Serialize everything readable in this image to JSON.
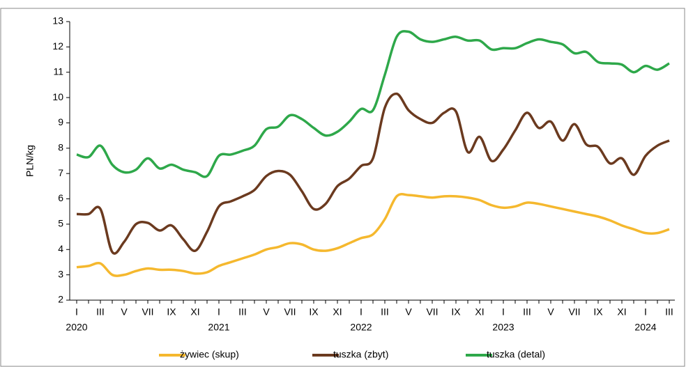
{
  "chart_data": {
    "type": "line",
    "ylabel": "PLN/kg",
    "categories": [
      "I",
      null,
      "III",
      null,
      "V",
      null,
      "VII",
      null,
      "IX",
      null,
      "XI",
      null,
      "I",
      null,
      "III",
      null,
      "V",
      null,
      "VII",
      null,
      "IX",
      null,
      "XI",
      null,
      "I",
      null,
      "III",
      null,
      "V",
      null,
      "VII",
      null,
      "IX",
      null,
      "XI",
      null,
      "I",
      null,
      "III",
      null,
      "V",
      null,
      "VII",
      null,
      "IX",
      null,
      "XI",
      null,
      "I",
      null,
      "III"
    ],
    "x_groups": [
      "2020",
      "2021",
      "2022",
      "2023",
      "2024"
    ],
    "ylim": [
      2,
      13
    ],
    "yticks": [
      2,
      3,
      4,
      5,
      6,
      7,
      8,
      9,
      10,
      11,
      12,
      13
    ],
    "legend": "bottom",
    "series": [
      {
        "name": "żywiec (skup)",
        "color": "#f5b82e",
        "values": [
          3.3,
          3.35,
          3.45,
          3.0,
          3.0,
          3.15,
          3.25,
          3.2,
          3.2,
          3.15,
          3.05,
          3.1,
          3.35,
          3.5,
          3.65,
          3.8,
          4.0,
          4.1,
          4.25,
          4.2,
          4.0,
          3.95,
          4.05,
          4.25,
          4.45,
          4.6,
          5.2,
          6.1,
          6.15,
          6.1,
          6.05,
          6.1,
          6.1,
          6.05,
          5.95,
          5.75,
          5.65,
          5.7,
          5.85,
          5.8,
          5.7,
          5.6,
          5.5,
          5.4,
          5.3,
          5.15,
          4.95,
          4.8,
          4.65,
          4.65,
          4.8
        ]
      },
      {
        "name": "tuszka (zbyt)",
        "color": "#6b3a1f",
        "values": [
          5.4,
          5.4,
          5.6,
          3.9,
          4.3,
          5.0,
          5.05,
          4.75,
          4.95,
          4.4,
          3.95,
          4.7,
          5.7,
          5.9,
          6.1,
          6.35,
          6.9,
          7.1,
          6.95,
          6.3,
          5.6,
          5.8,
          6.5,
          6.8,
          7.3,
          7.6,
          9.6,
          10.15,
          9.5,
          9.15,
          9.0,
          9.4,
          9.45,
          7.85,
          8.45,
          7.5,
          7.95,
          8.7,
          9.4,
          8.8,
          9.05,
          8.3,
          8.95,
          8.15,
          8.05,
          7.4,
          7.6,
          6.95,
          7.7,
          8.1,
          8.3
        ]
      },
      {
        "name": "tuszka (detal)",
        "color": "#2ea84a",
        "values": [
          7.75,
          7.65,
          8.1,
          7.35,
          7.05,
          7.15,
          7.6,
          7.2,
          7.35,
          7.15,
          7.05,
          6.9,
          7.7,
          7.75,
          7.9,
          8.1,
          8.75,
          8.85,
          9.3,
          9.15,
          8.8,
          8.5,
          8.65,
          9.05,
          9.55,
          9.5,
          10.9,
          12.4,
          12.6,
          12.3,
          12.2,
          12.3,
          12.4,
          12.25,
          12.25,
          11.9,
          11.95,
          11.95,
          12.15,
          12.3,
          12.2,
          12.1,
          11.75,
          11.8,
          11.4,
          11.35,
          11.3,
          11.0,
          11.25,
          11.1,
          11.35
        ]
      }
    ]
  }
}
